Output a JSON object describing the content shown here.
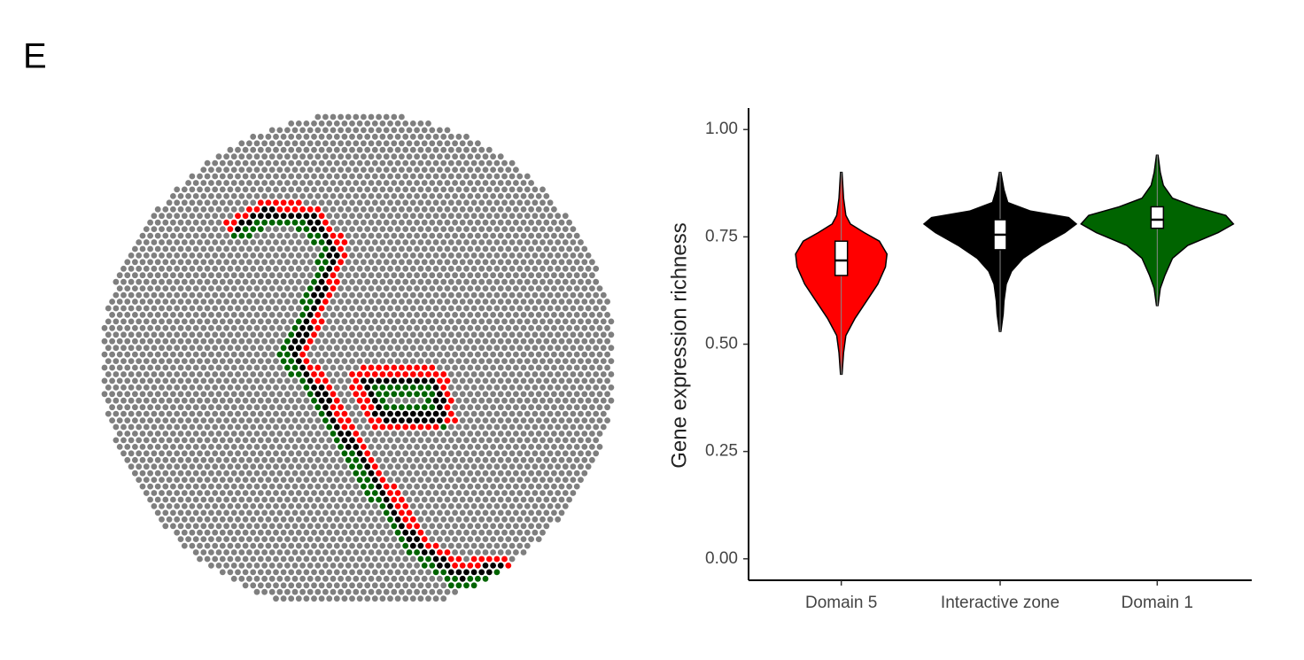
{
  "panel_label": "E",
  "chart_data": {
    "type": "violin",
    "ylabel": "Gene expression richness",
    "categories": [
      "Domain 5",
      "Interactive zone",
      "Domain 1"
    ],
    "violins": [
      {
        "color": "#ff0000",
        "y": [
          0.43,
          0.48,
          0.52,
          0.56,
          0.6,
          0.64,
          0.68,
          0.71,
          0.74,
          0.76,
          0.78,
          0.8,
          0.84,
          0.9
        ],
        "density": [
          0.01,
          0.03,
          0.06,
          0.18,
          0.33,
          0.48,
          0.58,
          0.6,
          0.5,
          0.3,
          0.12,
          0.06,
          0.03,
          0.01
        ],
        "q1": 0.66,
        "median": 0.695,
        "q3": 0.74
      },
      {
        "color": "#000000",
        "y": [
          0.53,
          0.57,
          0.6,
          0.64,
          0.67,
          0.7,
          0.73,
          0.76,
          0.78,
          0.795,
          0.81,
          0.83,
          0.86,
          0.9
        ],
        "density": [
          0.01,
          0.04,
          0.05,
          0.08,
          0.15,
          0.3,
          0.55,
          0.85,
          1.0,
          0.9,
          0.4,
          0.1,
          0.05,
          0.01
        ],
        "q1": 0.72,
        "median": 0.755,
        "q3": 0.79
      },
      {
        "color": "#006400",
        "y": [
          0.59,
          0.63,
          0.66,
          0.7,
          0.73,
          0.76,
          0.78,
          0.8,
          0.82,
          0.84,
          0.87,
          0.9,
          0.94
        ],
        "density": [
          0.01,
          0.04,
          0.1,
          0.2,
          0.4,
          0.8,
          1.0,
          0.9,
          0.5,
          0.2,
          0.08,
          0.04,
          0.01
        ],
        "q1": 0.77,
        "median": 0.79,
        "q3": 0.82
      }
    ],
    "ylim": [
      -0.05,
      1.05
    ],
    "yticks": [
      {
        "value": 0,
        "label": "0.00"
      },
      {
        "value": 0.25,
        "label": "0.25"
      },
      {
        "value": 0.5,
        "label": "0.50"
      },
      {
        "value": 0.75,
        "label": "0.75"
      },
      {
        "value": 1,
        "label": "1.00"
      }
    ],
    "grid": false
  }
}
